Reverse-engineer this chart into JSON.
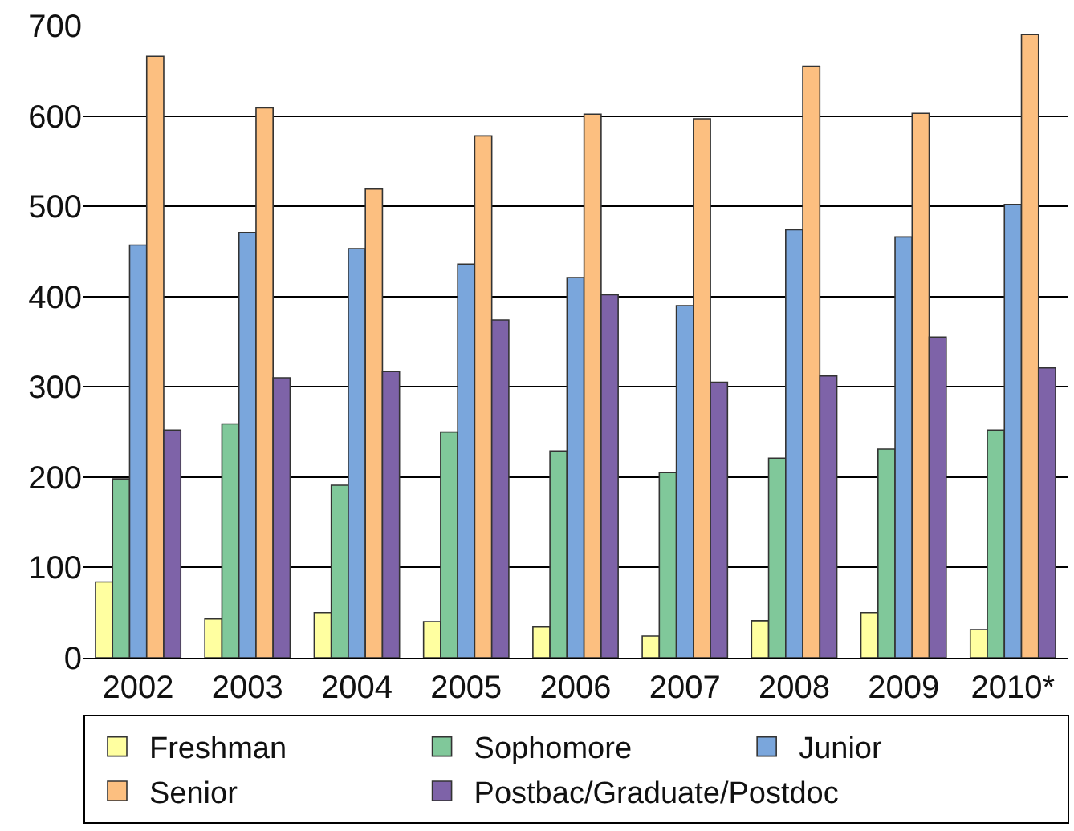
{
  "chart_data": {
    "type": "bar",
    "categories": [
      "2002",
      "2003",
      "2004",
      "2005",
      "2006",
      "2007",
      "2008",
      "2009",
      "2010*"
    ],
    "series": [
      {
        "name": "Freshman",
        "color": "#ffffa0",
        "values": [
          84,
          43,
          50,
          40,
          34,
          24,
          41,
          50,
          31
        ]
      },
      {
        "name": "Sophomore",
        "color": "#80c89a",
        "values": [
          198,
          259,
          191,
          250,
          229,
          205,
          221,
          231,
          252
        ]
      },
      {
        "name": "Junior",
        "color": "#7aa6dc",
        "values": [
          457,
          471,
          453,
          436,
          421,
          390,
          474,
          466,
          502
        ]
      },
      {
        "name": "Senior",
        "color": "#fcbf80",
        "values": [
          666,
          609,
          519,
          578,
          602,
          597,
          655,
          603,
          690
        ]
      },
      {
        "name": "Postbac/Graduate/Postdoc",
        "color": "#7e63a8",
        "values": [
          252,
          310,
          317,
          374,
          402,
          305,
          312,
          355,
          321
        ]
      }
    ],
    "ylim": [
      0,
      700
    ],
    "yticks": [
      0,
      100,
      200,
      300,
      400,
      500,
      600,
      700
    ],
    "grid": "y",
    "legend": "bottom"
  }
}
